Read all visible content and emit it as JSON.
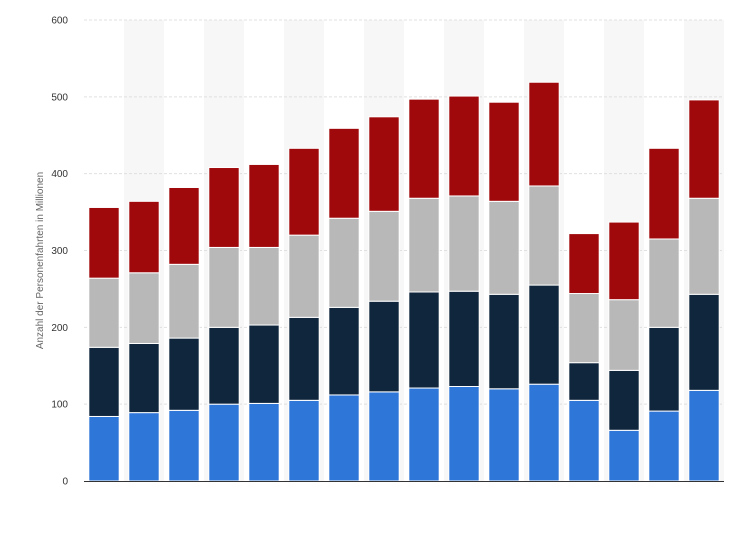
{
  "chart_data": {
    "type": "bar",
    "stacked": true,
    "ylabel": "Anzahl der Personenfahrten in Millionen",
    "ylim": [
      0,
      600
    ],
    "yticks": [
      0,
      100,
      200,
      300,
      400,
      500,
      600
    ],
    "grid": true,
    "alternating_column_shading": true,
    "categories": [
      "",
      "",
      "",
      "",
      "",
      "",
      "",
      "",
      "",
      "",
      "",
      "",
      "",
      "",
      "",
      ""
    ],
    "series": [
      {
        "color": "#2f76d9",
        "values": [
          84,
          89,
          92,
          100,
          101,
          105,
          112,
          116,
          121,
          123,
          120,
          126,
          105,
          66,
          91,
          118
        ]
      },
      {
        "color": "#10263d",
        "values": [
          90,
          90,
          94,
          100,
          102,
          108,
          114,
          118,
          125,
          124,
          123,
          129,
          49,
          78,
          109,
          125
        ]
      },
      {
        "color": "#b8b8b8",
        "values": [
          90,
          92,
          96,
          104,
          101,
          107,
          116,
          117,
          122,
          124,
          121,
          129,
          90,
          92,
          115,
          125
        ]
      },
      {
        "color": "#a0090c",
        "values": [
          92,
          93,
          100,
          104,
          108,
          113,
          117,
          123,
          129,
          130,
          129,
          135,
          78,
          101,
          118,
          128
        ]
      }
    ]
  }
}
